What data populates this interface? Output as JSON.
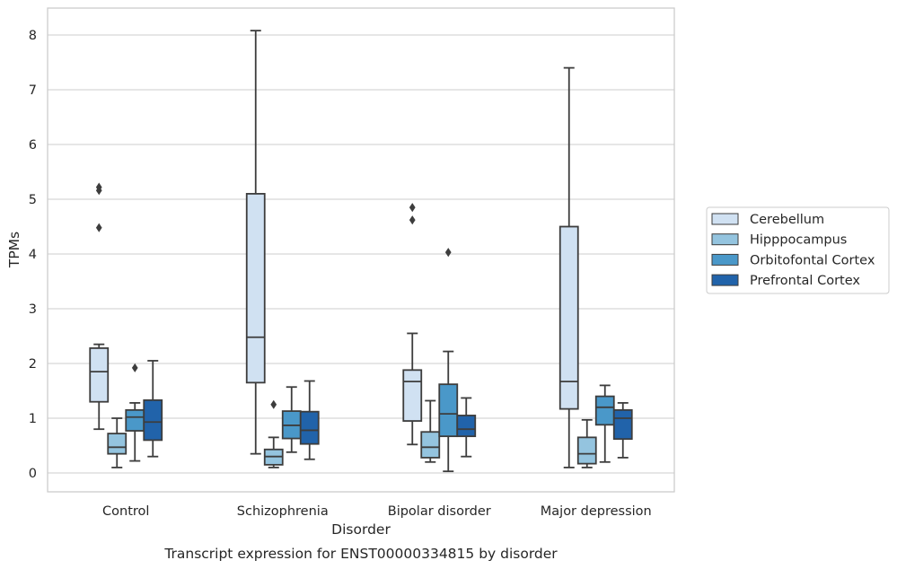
{
  "caption": "Transcript expression for ENST00000334815 by disorder",
  "chart_data": {
    "type": "box",
    "xlabel": "Disorder",
    "ylabel": "TPMs",
    "ylim": [
      -0.35,
      8.5
    ],
    "yticks": [
      0,
      1,
      2,
      3,
      4,
      5,
      6,
      7,
      8
    ],
    "grid": "horizontal",
    "legend_position": "right",
    "categories": [
      "Control",
      "Schizophrenia",
      "Bipolar disorder",
      "Major depression"
    ],
    "series": [
      {
        "name": "Cerebellum",
        "color": "#d0e1f2",
        "boxes": [
          {
            "whisker_low": 0.8,
            "q1": 1.3,
            "median": 1.85,
            "q3": 2.28,
            "whisker_high": 2.35,
            "outliers": [
              4.48,
              5.16,
              5.22
            ]
          },
          {
            "whisker_low": 0.35,
            "q1": 1.65,
            "median": 2.48,
            "q3": 5.1,
            "whisker_high": 8.08,
            "outliers": []
          },
          {
            "whisker_low": 0.52,
            "q1": 0.95,
            "median": 1.67,
            "q3": 1.88,
            "whisker_high": 2.55,
            "outliers": [
              4.62,
              4.85
            ]
          },
          {
            "whisker_low": 0.1,
            "q1": 1.17,
            "median": 1.67,
            "q3": 4.5,
            "whisker_high": 7.4,
            "outliers": []
          }
        ]
      },
      {
        "name": "Hipppocampus",
        "color": "#94c4df",
        "boxes": [
          {
            "whisker_low": 0.1,
            "q1": 0.35,
            "median": 0.47,
            "q3": 0.72,
            "whisker_high": 1.0,
            "outliers": []
          },
          {
            "whisker_low": 0.1,
            "q1": 0.15,
            "median": 0.3,
            "q3": 0.43,
            "whisker_high": 0.65,
            "outliers": [
              1.25
            ]
          },
          {
            "whisker_low": 0.2,
            "q1": 0.28,
            "median": 0.47,
            "q3": 0.75,
            "whisker_high": 1.32,
            "outliers": []
          },
          {
            "whisker_low": 0.1,
            "q1": 0.17,
            "median": 0.35,
            "q3": 0.65,
            "whisker_high": 0.97,
            "outliers": []
          }
        ]
      },
      {
        "name": "Orbitofontal Cortex",
        "color": "#4a98c9",
        "boxes": [
          {
            "whisker_low": 0.22,
            "q1": 0.77,
            "median": 1.02,
            "q3": 1.15,
            "whisker_high": 1.28,
            "outliers": [
              1.92
            ]
          },
          {
            "whisker_low": 0.38,
            "q1": 0.63,
            "median": 0.87,
            "q3": 1.13,
            "whisker_high": 1.57,
            "outliers": []
          },
          {
            "whisker_low": 0.03,
            "q1": 0.67,
            "median": 1.08,
            "q3": 1.62,
            "whisker_high": 2.22,
            "outliers": [
              4.03
            ]
          },
          {
            "whisker_low": 0.2,
            "q1": 0.88,
            "median": 1.2,
            "q3": 1.4,
            "whisker_high": 1.6,
            "outliers": []
          }
        ]
      },
      {
        "name": "Prefrontal Cortex",
        "color": "#2163aa",
        "boxes": [
          {
            "whisker_low": 0.3,
            "q1": 0.6,
            "median": 0.93,
            "q3": 1.33,
            "whisker_high": 2.05,
            "outliers": []
          },
          {
            "whisker_low": 0.25,
            "q1": 0.53,
            "median": 0.78,
            "q3": 1.12,
            "whisker_high": 1.68,
            "outliers": []
          },
          {
            "whisker_low": 0.3,
            "q1": 0.67,
            "median": 0.8,
            "q3": 1.05,
            "whisker_high": 1.37,
            "outliers": []
          },
          {
            "whisker_low": 0.28,
            "q1": 0.62,
            "median": 1.0,
            "q3": 1.15,
            "whisker_high": 1.28,
            "outliers": []
          }
        ]
      }
    ]
  }
}
